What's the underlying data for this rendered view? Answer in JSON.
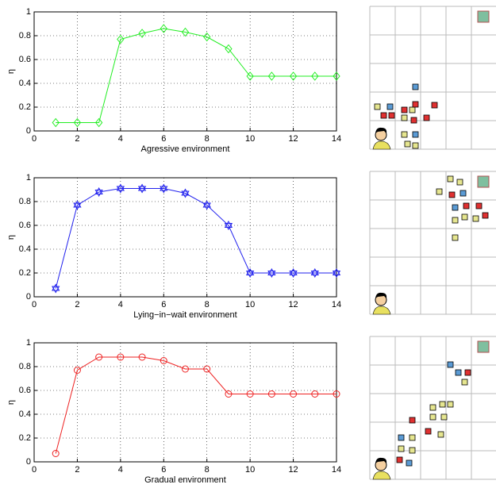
{
  "chart_data": [
    {
      "type": "line",
      "xlabel": "Agressive environment",
      "ylabel": "η",
      "x": [
        1,
        2,
        3,
        4,
        5,
        6,
        7,
        8,
        9,
        10,
        11,
        12,
        13,
        14
      ],
      "series": [
        {
          "color": "#22ee22",
          "marker": "diamond",
          "values": [
            0.07,
            0.07,
            0.07,
            0.77,
            0.82,
            0.86,
            0.83,
            0.79,
            0.69,
            0.46,
            0.46,
            0.46,
            0.46,
            0.46
          ]
        }
      ],
      "xlim": [
        0,
        14
      ],
      "xticks": [
        0,
        2,
        4,
        6,
        8,
        10,
        12,
        14
      ],
      "ylim": [
        0,
        1
      ],
      "yticks": [
        0,
        0.2,
        0.4,
        0.6,
        0.8,
        1
      ],
      "grid": true
    },
    {
      "type": "line",
      "xlabel": "Lying−in−wait environment",
      "ylabel": "η",
      "x": [
        1,
        2,
        3,
        4,
        5,
        6,
        7,
        8,
        9,
        10,
        11,
        12,
        13,
        14
      ],
      "series": [
        {
          "color": "#2222ee",
          "marker": "hexagram",
          "values": [
            0.07,
            0.77,
            0.88,
            0.91,
            0.91,
            0.91,
            0.87,
            0.77,
            0.6,
            0.2,
            0.2,
            0.2,
            0.2,
            0.2
          ]
        }
      ],
      "xlim": [
        0,
        14
      ],
      "xticks": [
        0,
        2,
        4,
        6,
        8,
        10,
        12,
        14
      ],
      "ylim": [
        0,
        1
      ],
      "yticks": [
        0,
        0.2,
        0.4,
        0.6,
        0.8,
        1
      ],
      "grid": true
    },
    {
      "type": "line",
      "xlabel": "Gradual environment",
      "ylabel": "η",
      "x": [
        1,
        2,
        3,
        4,
        5,
        6,
        7,
        8,
        9,
        10,
        11,
        12,
        13,
        14
      ],
      "series": [
        {
          "color": "#ee2222",
          "marker": "circle",
          "values": [
            0.07,
            0.77,
            0.88,
            0.88,
            0.88,
            0.85,
            0.78,
            0.78,
            0.57,
            0.57,
            0.57,
            0.57,
            0.57,
            0.57
          ]
        }
      ],
      "xlim": [
        0,
        14
      ],
      "xticks": [
        0,
        2,
        4,
        6,
        8,
        10,
        12,
        14
      ],
      "ylim": [
        0,
        1
      ],
      "yticks": [
        0,
        0.2,
        0.4,
        0.6,
        0.8,
        1
      ],
      "grid": true
    }
  ]
}
